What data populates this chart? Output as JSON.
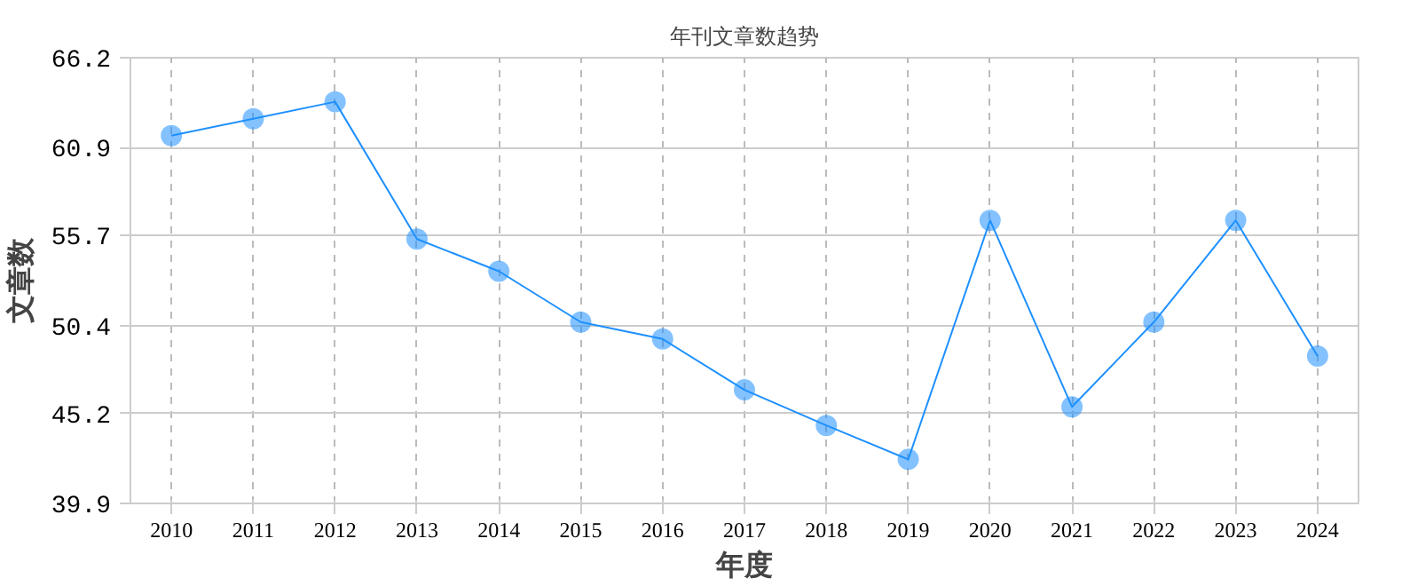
{
  "chart_data": {
    "type": "line",
    "title": "年刊文章数趋势",
    "xlabel": "年度",
    "ylabel": "文章数",
    "categories": [
      "2010",
      "2011",
      "2012",
      "2013",
      "2014",
      "2015",
      "2016",
      "2017",
      "2018",
      "2019",
      "2020",
      "2021",
      "2022",
      "2023",
      "2024"
    ],
    "series": [
      {
        "color": "#1e90ff",
        "values": [
          61.6,
          62.6,
          63.6,
          55.5,
          53.6,
          50.6,
          49.6,
          46.6,
          44.5,
          42.5,
          56.6,
          45.6,
          50.6,
          56.6,
          48.6
        ]
      }
    ],
    "ylim": [
      39.9,
      66.2
    ],
    "yticks": [
      39.9,
      45.2,
      50.4,
      55.7,
      60.9,
      66.2
    ],
    "grid": true,
    "marker": "circle",
    "line_style": "solid"
  }
}
